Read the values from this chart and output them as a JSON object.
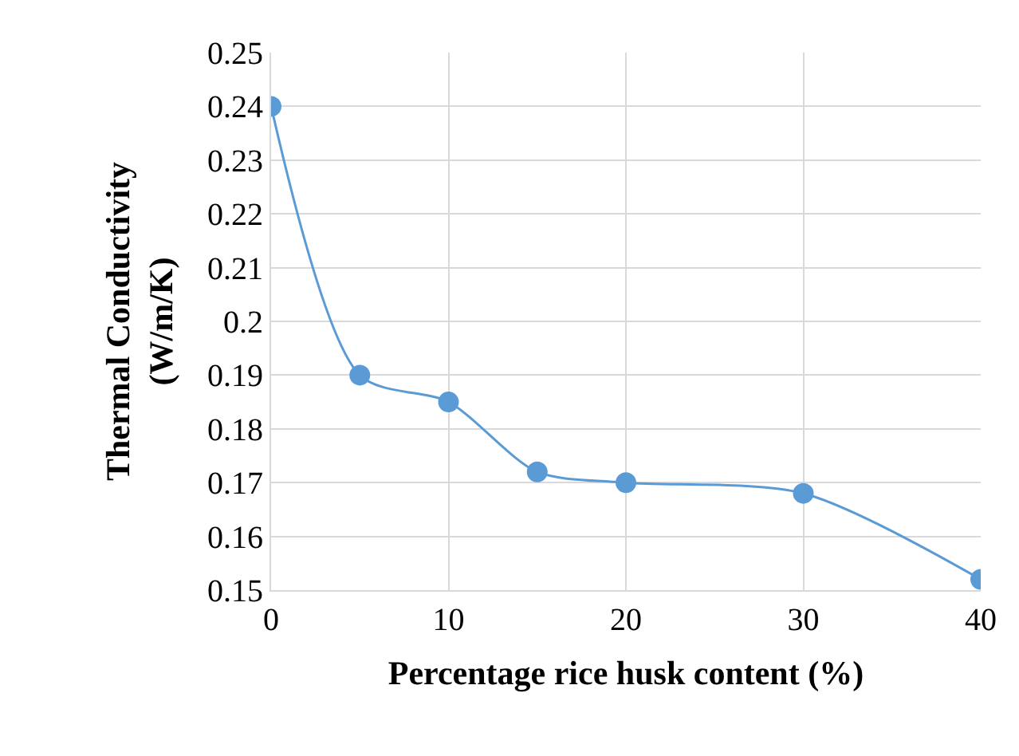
{
  "chart_data": {
    "type": "line",
    "xlabel": "Percentage rice husk content (%)",
    "ylabel": "Thermal Conductivity\n(W/m/K)",
    "x": [
      0,
      5,
      10,
      15,
      20,
      30,
      40
    ],
    "series": [
      {
        "color": "#5b9bd5",
        "values": [
          0.24,
          0.19,
          0.185,
          0.172,
          0.17,
          0.168,
          0.152
        ]
      }
    ],
    "xlim": [
      0,
      40
    ],
    "xticks": [
      0,
      10,
      20,
      30,
      40
    ],
    "ylim": [
      0.15,
      0.25
    ],
    "yticks": [
      0.15,
      0.16,
      0.17,
      0.18,
      0.19,
      0.2,
      0.21,
      0.22,
      0.23,
      0.24,
      0.25
    ],
    "grid": true,
    "marker": "circle",
    "line_style": "solid",
    "legend": false
  }
}
